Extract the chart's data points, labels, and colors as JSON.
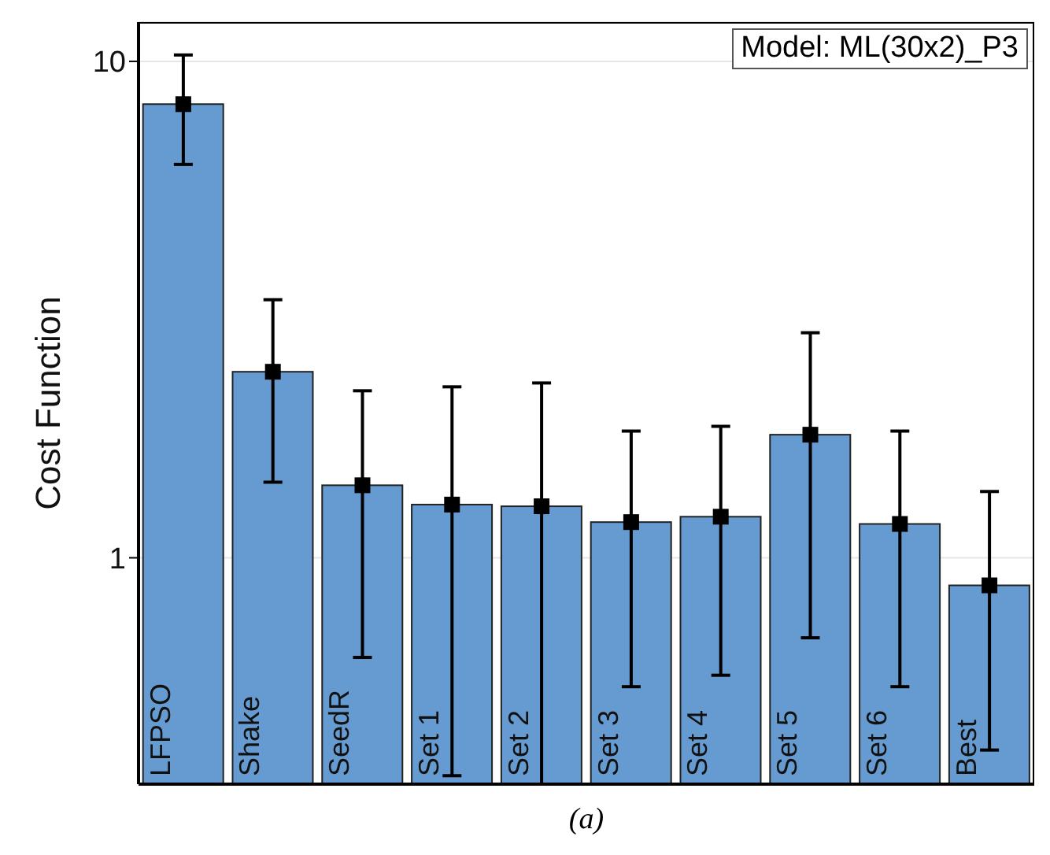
{
  "chart_data": {
    "type": "bar",
    "ylabel": "Cost Function",
    "categories": [
      "LFPSO",
      "Shake",
      "SeedR",
      "Set 1",
      "Set 2",
      "Set 3",
      "Set 4",
      "Set 5",
      "Set 6",
      "Best"
    ],
    "series": [
      {
        "color": "#659bd0",
        "values": [
          8.2,
          2.37,
          1.4,
          1.28,
          1.27,
          1.18,
          1.21,
          1.77,
          1.17,
          0.88
        ]
      },
      {
        "type": "scatter",
        "color": "#000000",
        "marker": "square",
        "x": [
          "LFPSO",
          "Shake",
          "SeedR",
          "Set 1",
          "Set 2",
          "Set 3",
          "Set 4",
          "Set 5",
          "Set 6",
          "Best"
        ],
        "values": [
          8.2,
          2.37,
          1.4,
          1.28,
          1.27,
          1.18,
          1.21,
          1.77,
          1.17,
          0.88
        ],
        "errors": [
          [
            6.2,
            10.3
          ],
          [
            1.42,
            3.31
          ],
          [
            0.63,
            2.17
          ],
          [
            0.364,
            2.21
          ],
          [
            0.35,
            2.25
          ],
          [
            0.55,
            1.8
          ],
          [
            0.58,
            1.84
          ],
          [
            0.69,
            2.84
          ],
          [
            0.55,
            1.8
          ],
          [
            0.41,
            1.36
          ]
        ]
      }
    ],
    "log": true,
    "grid": "y",
    "ylim": [
      0.35,
      12
    ],
    "yticks": [
      1,
      10
    ],
    "annotations": [
      "Model: ML(30x2)_P3",
      "(a)"
    ]
  }
}
